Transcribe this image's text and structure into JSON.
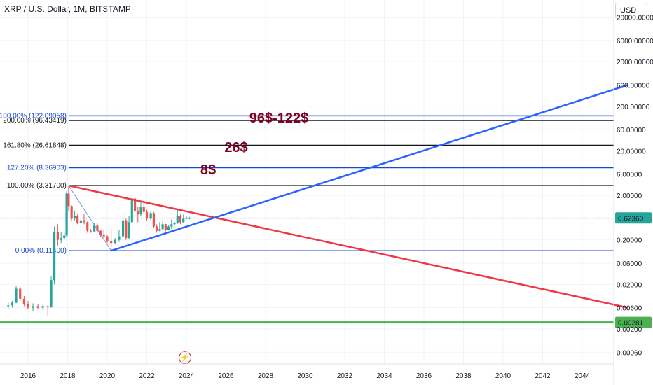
{
  "header": {
    "title": "XRP / U.S. Dollar, 1M, BITSTAMP"
  },
  "currency_button": "USD",
  "flash_icon": "lightning-icon",
  "chart_data": {
    "type": "candlestick",
    "scale": "log",
    "x_ticks": [
      "2016",
      "2018",
      "2020",
      "2022",
      "2024",
      "2026",
      "2028",
      "2030",
      "2032",
      "2034",
      "2036",
      "2038",
      "2040",
      "2042",
      "2044"
    ],
    "y_ticks": [
      "20000.00000",
      "6000.00000",
      "2000.00000",
      "600.00000",
      "200.00000",
      "60.00000",
      "20.00000",
      "6.00000",
      "2.00000",
      "0.60000",
      "0.20000",
      "0.06000",
      "0.02000",
      "0.00600",
      "0.00200",
      "0.00060"
    ],
    "current_price": "0.62360",
    "support_price": "0.00281",
    "fib_levels": [
      {
        "label": "100.00% (122.09058)",
        "value": 122.09,
        "color": "#1848cc"
      },
      {
        "label": "200.00% (96.43419)",
        "value": 96.43,
        "color": "#131722"
      },
      {
        "label": "161.80% (26.61848)",
        "value": 26.62,
        "color": "#131722"
      },
      {
        "label": "127.20% (8.36903)",
        "value": 8.37,
        "color": "#1848cc"
      },
      {
        "label": "100.00% (3.31700)",
        "value": 3.317,
        "color": "#131722"
      },
      {
        "label": "0.00% (0.11400)",
        "value": 0.114,
        "color": "#1848cc"
      }
    ],
    "annotations": [
      "96$-122$",
      "26$",
      "8$"
    ],
    "price_series": [
      {
        "date": 2015.0,
        "open": 0.0065,
        "high": 0.008,
        "low": 0.0055,
        "close": 0.0068
      },
      {
        "date": 2015.2,
        "open": 0.0068,
        "high": 0.0085,
        "low": 0.006,
        "close": 0.0078
      },
      {
        "date": 2015.4,
        "open": 0.0078,
        "high": 0.0185,
        "low": 0.0075,
        "close": 0.016
      },
      {
        "date": 2015.6,
        "open": 0.016,
        "high": 0.018,
        "low": 0.0085,
        "close": 0.0095
      },
      {
        "date": 2015.8,
        "open": 0.0095,
        "high": 0.011,
        "low": 0.0065,
        "close": 0.0072
      },
      {
        "date": 2016.0,
        "open": 0.0072,
        "high": 0.0085,
        "low": 0.0055,
        "close": 0.006
      },
      {
        "date": 2016.25,
        "open": 0.006,
        "high": 0.0075,
        "low": 0.005,
        "close": 0.0065
      },
      {
        "date": 2016.5,
        "open": 0.0065,
        "high": 0.0072,
        "low": 0.0055,
        "close": 0.006
      },
      {
        "date": 2016.75,
        "open": 0.006,
        "high": 0.007,
        "low": 0.0052,
        "close": 0.0065
      },
      {
        "date": 2017.0,
        "open": 0.0065,
        "high": 0.0068,
        "low": 0.004,
        "close": 0.0062
      },
      {
        "date": 2017.17,
        "open": 0.0062,
        "high": 0.03,
        "low": 0.006,
        "close": 0.025
      },
      {
        "date": 2017.33,
        "open": 0.025,
        "high": 0.4,
        "low": 0.02,
        "close": 0.3
      },
      {
        "date": 2017.5,
        "open": 0.3,
        "high": 0.45,
        "low": 0.15,
        "close": 0.2
      },
      {
        "date": 2017.67,
        "open": 0.2,
        "high": 0.3,
        "low": 0.17,
        "close": 0.22
      },
      {
        "date": 2017.83,
        "open": 0.22,
        "high": 0.3,
        "low": 0.2,
        "close": 0.25
      },
      {
        "date": 2017.95,
        "open": 0.25,
        "high": 2.5,
        "low": 0.23,
        "close": 2.2
      },
      {
        "date": 2018.05,
        "open": 2.2,
        "high": 3.317,
        "low": 0.9,
        "close": 1.15
      },
      {
        "date": 2018.2,
        "open": 1.15,
        "high": 1.2,
        "low": 0.55,
        "close": 0.6
      },
      {
        "date": 2018.35,
        "open": 0.6,
        "high": 0.9,
        "low": 0.55,
        "close": 0.7
      },
      {
        "date": 2018.5,
        "open": 0.7,
        "high": 0.75,
        "low": 0.45,
        "close": 0.48
      },
      {
        "date": 2018.67,
        "open": 0.48,
        "high": 0.6,
        "low": 0.28,
        "close": 0.55
      },
      {
        "date": 2018.83,
        "open": 0.55,
        "high": 0.78,
        "low": 0.45,
        "close": 0.5
      },
      {
        "date": 2019.0,
        "open": 0.5,
        "high": 0.52,
        "low": 0.29,
        "close": 0.32
      },
      {
        "date": 2019.17,
        "open": 0.32,
        "high": 0.35,
        "low": 0.29,
        "close": 0.31
      },
      {
        "date": 2019.35,
        "open": 0.31,
        "high": 0.48,
        "low": 0.3,
        "close": 0.42
      },
      {
        "date": 2019.5,
        "open": 0.42,
        "high": 0.48,
        "low": 0.3,
        "close": 0.32
      },
      {
        "date": 2019.67,
        "open": 0.32,
        "high": 0.34,
        "low": 0.23,
        "close": 0.26
      },
      {
        "date": 2019.83,
        "open": 0.26,
        "high": 0.33,
        "low": 0.22,
        "close": 0.24
      },
      {
        "date": 2020.0,
        "open": 0.24,
        "high": 0.26,
        "low": 0.17,
        "close": 0.19
      },
      {
        "date": 2020.2,
        "open": 0.19,
        "high": 0.35,
        "low": 0.114,
        "close": 0.17
      },
      {
        "date": 2020.4,
        "open": 0.17,
        "high": 0.22,
        "low": 0.16,
        "close": 0.2
      },
      {
        "date": 2020.6,
        "open": 0.2,
        "high": 0.33,
        "low": 0.18,
        "close": 0.24
      },
      {
        "date": 2020.8,
        "open": 0.24,
        "high": 0.8,
        "low": 0.23,
        "close": 0.55
      },
      {
        "date": 2020.95,
        "open": 0.55,
        "high": 0.6,
        "low": 0.2,
        "close": 0.22
      },
      {
        "date": 2021.1,
        "open": 0.22,
        "high": 0.7,
        "low": 0.21,
        "close": 0.5
      },
      {
        "date": 2021.25,
        "open": 0.5,
        "high": 1.96,
        "low": 0.48,
        "close": 1.7
      },
      {
        "date": 2021.4,
        "open": 1.7,
        "high": 1.75,
        "low": 0.65,
        "close": 0.9
      },
      {
        "date": 2021.55,
        "open": 0.9,
        "high": 1.1,
        "low": 0.5,
        "close": 0.75
      },
      {
        "date": 2021.7,
        "open": 0.75,
        "high": 1.4,
        "low": 0.7,
        "close": 1.1
      },
      {
        "date": 2021.85,
        "open": 1.1,
        "high": 1.35,
        "low": 0.8,
        "close": 0.85
      },
      {
        "date": 2022.0,
        "open": 0.85,
        "high": 0.95,
        "low": 0.55,
        "close": 0.6
      },
      {
        "date": 2022.2,
        "open": 0.6,
        "high": 0.9,
        "low": 0.55,
        "close": 0.8
      },
      {
        "date": 2022.35,
        "open": 0.8,
        "high": 0.85,
        "low": 0.38,
        "close": 0.4
      },
      {
        "date": 2022.5,
        "open": 0.4,
        "high": 0.45,
        "low": 0.29,
        "close": 0.32
      },
      {
        "date": 2022.65,
        "open": 0.32,
        "high": 0.5,
        "low": 0.31,
        "close": 0.35
      },
      {
        "date": 2022.8,
        "open": 0.35,
        "high": 0.52,
        "low": 0.34,
        "close": 0.45
      },
      {
        "date": 2022.95,
        "open": 0.45,
        "high": 0.46,
        "low": 0.31,
        "close": 0.34
      },
      {
        "date": 2023.1,
        "open": 0.34,
        "high": 0.42,
        "low": 0.33,
        "close": 0.4
      },
      {
        "date": 2023.25,
        "open": 0.4,
        "high": 0.58,
        "low": 0.35,
        "close": 0.45
      },
      {
        "date": 2023.4,
        "open": 0.45,
        "high": 0.5,
        "low": 0.42,
        "close": 0.48
      },
      {
        "date": 2023.55,
        "open": 0.48,
        "high": 0.93,
        "low": 0.46,
        "close": 0.7
      },
      {
        "date": 2023.7,
        "open": 0.7,
        "high": 0.75,
        "low": 0.45,
        "close": 0.5
      },
      {
        "date": 2023.85,
        "open": 0.5,
        "high": 0.74,
        "low": 0.48,
        "close": 0.6
      },
      {
        "date": 2024.0,
        "open": 0.6,
        "high": 0.7,
        "low": 0.58,
        "close": 0.62
      },
      {
        "date": 2024.15,
        "open": 0.62,
        "high": 0.66,
        "low": 0.58,
        "close": 0.6236
      }
    ],
    "trendlines": [
      {
        "name": "red descending resistance",
        "color": "#f23645",
        "from": {
          "date": 2018.05,
          "price": 3.317
        },
        "to": {
          "date": 2046.3,
          "price": 0.006
        }
      },
      {
        "name": "blue ascending support",
        "color": "#2962ff",
        "from": {
          "date": 2020.2,
          "price": 0.114
        },
        "to": {
          "date": 2046.3,
          "price": 600
        }
      },
      {
        "name": "blue thin fib connector",
        "color": "#5b7bd6",
        "from": {
          "date": 2018.05,
          "price": 3.317
        },
        "to": {
          "date": 2020.2,
          "price": 0.114
        }
      }
    ]
  }
}
